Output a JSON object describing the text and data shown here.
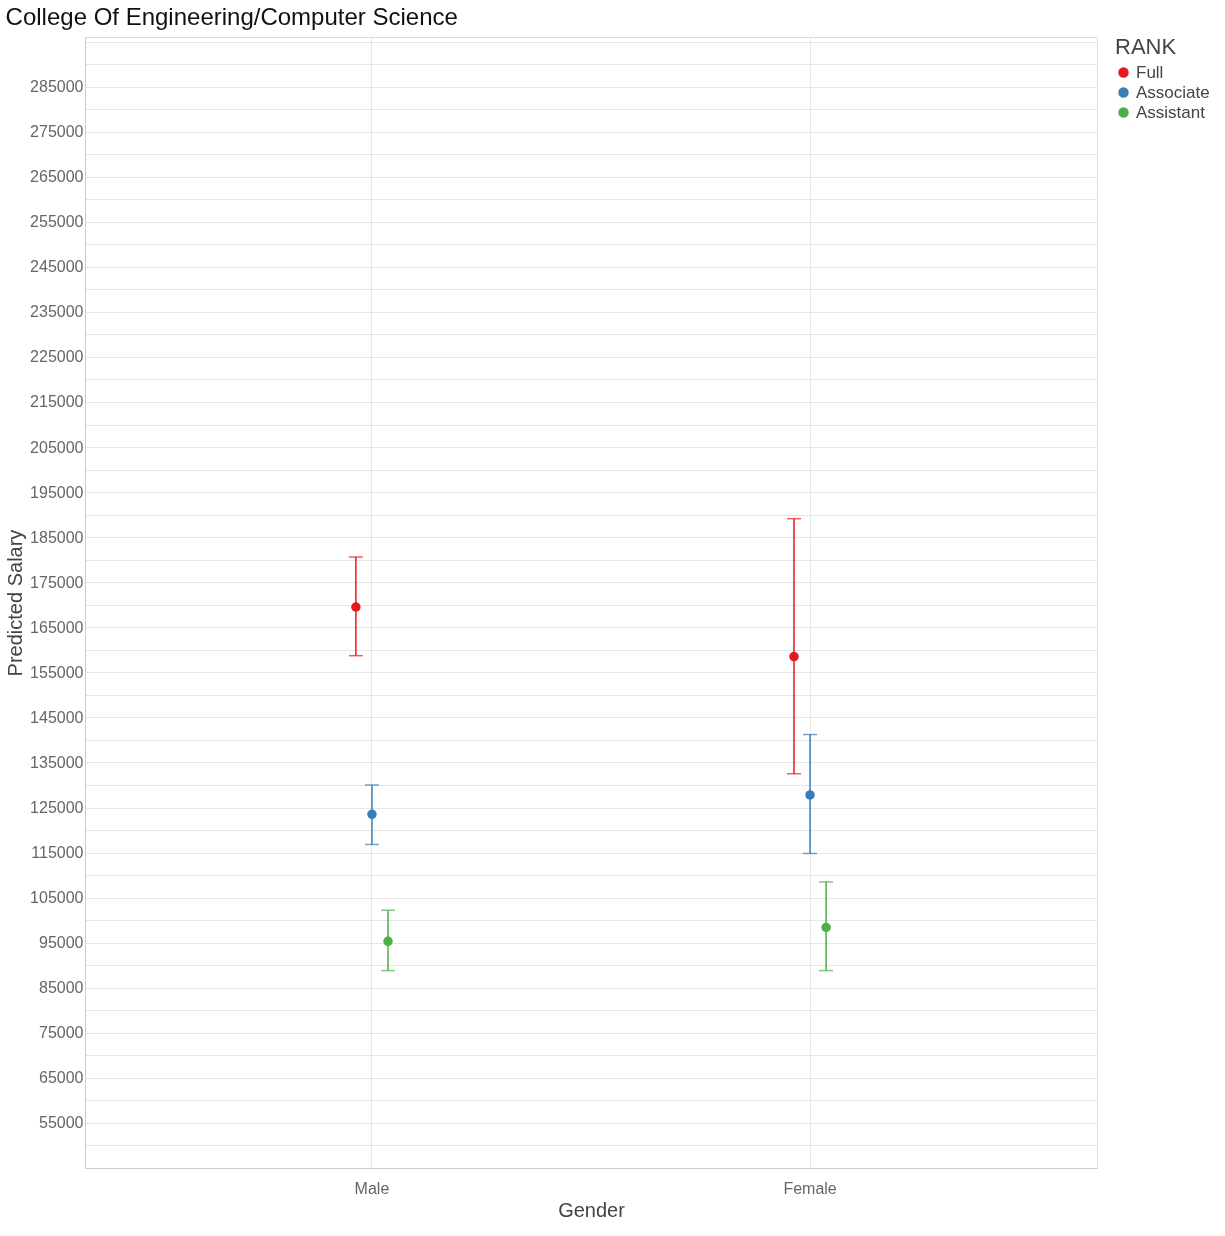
{
  "chart_data": {
    "type": "scatter",
    "title": "College Of Engineering/Computer Science",
    "xlabel": "Gender",
    "ylabel": "Predicted Salary",
    "legend_title": "RANK",
    "categories": [
      "Male",
      "Female"
    ],
    "series": [
      {
        "name": "Full",
        "color": "#e41a1c",
        "values": [
          169500,
          158500
        ],
        "errors": [
          [
            158700,
            180600
          ],
          [
            132500,
            189100
          ]
        ]
      },
      {
        "name": "Associate",
        "color": "#377eb8",
        "values": [
          123500,
          127800
        ],
        "errors": [
          [
            116800,
            130000
          ],
          [
            114800,
            141200
          ]
        ]
      },
      {
        "name": "Assistant",
        "color": "#4daf4a",
        "values": [
          95300,
          98400
        ],
        "errors": [
          [
            88800,
            102200
          ],
          [
            88800,
            108500
          ]
        ]
      }
    ],
    "ylim": [
      45000,
      296000
    ],
    "yticks": [
      {
        "value": 50000,
        "label": null
      },
      55000,
      {
        "value": 60000,
        "label": null
      },
      65000,
      {
        "value": 70000,
        "label": null
      },
      75000,
      {
        "value": 80000,
        "label": null
      },
      85000,
      {
        "value": 90000,
        "label": null
      },
      95000,
      {
        "value": 100000,
        "label": null
      },
      105000,
      {
        "value": 110000,
        "label": null
      },
      115000,
      {
        "value": 120000,
        "label": null
      },
      125000,
      {
        "value": 130000,
        "label": null
      },
      135000,
      {
        "value": 140000,
        "label": null
      },
      145000,
      {
        "value": 150000,
        "label": null
      },
      155000,
      {
        "value": 160000,
        "label": null
      },
      165000,
      {
        "value": 170000,
        "label": null
      },
      175000,
      {
        "value": 180000,
        "label": null
      },
      185000,
      {
        "value": 190000,
        "label": null
      },
      195000,
      {
        "value": 200000,
        "label": null
      },
      205000,
      {
        "value": 210000,
        "label": null
      },
      215000,
      {
        "value": 220000,
        "label": null
      },
      225000,
      {
        "value": 230000,
        "label": null
      },
      235000,
      {
        "value": 240000,
        "label": null
      },
      245000,
      {
        "value": 250000,
        "label": null
      },
      255000,
      {
        "value": 260000,
        "label": null
      },
      265000,
      {
        "value": 270000,
        "label": null
      },
      275000,
      {
        "value": 280000,
        "label": null
      },
      285000,
      {
        "value": 290000,
        "label": null
      },
      {
        "value": 295000,
        "label": null
      }
    ],
    "grid": true,
    "legend": "right",
    "marker": "circle"
  }
}
